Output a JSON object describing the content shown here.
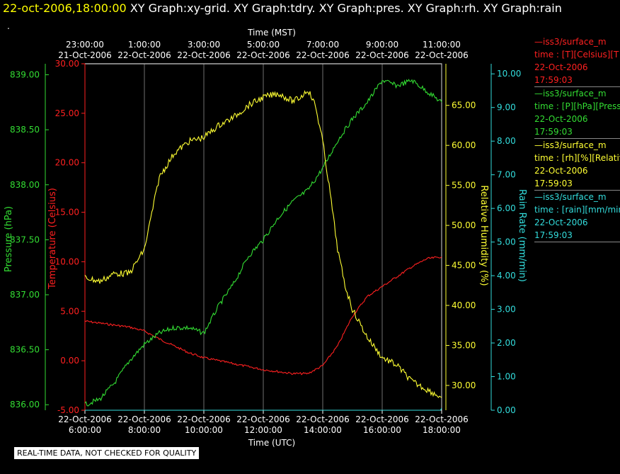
{
  "header": {
    "datetime": "22-oct-2006,18:00:00",
    "graph_titles": "XY Graph:xy-grid.  XY Graph:tdry.  XY Graph:pres.  XY Graph:rh.  XY Graph:rain",
    "dot": "."
  },
  "qc_note": "REAL-TIME DATA, NOT CHECKED FOR QUALITY",
  "legend": [
    {
      "line": "—iss3/surface_m",
      "var": "time : [T][Celsius][T",
      "date": "22-Oct-2006",
      "time": "17:59:03",
      "color": "#ff2020"
    },
    {
      "line": "—iss3/surface_m",
      "var": "time : [P][hPa][Press",
      "date": "22-Oct-2006",
      "time": "17:59:03",
      "color": "#33dd33"
    },
    {
      "line": "—iss3/surface_m",
      "var": "time : [rh][%][Relativ",
      "date": "22-Oct-2006",
      "time": "17:59:03",
      "color": "#ffff33"
    },
    {
      "line": "—iss3/surface_m",
      "var": "time : [rain][mm/min",
      "date": "22-Oct-2006",
      "time": "17:59:03",
      "color": "#33dddd"
    }
  ],
  "chart_data": {
    "type": "line",
    "top_axis": {
      "label": "Time (MST)",
      "ticks": [
        {
          "t": "23:00:00",
          "d": "21-Oct-2006"
        },
        {
          "t": "1:00:00",
          "d": "22-Oct-2006"
        },
        {
          "t": "3:00:00",
          "d": "22-Oct-2006"
        },
        {
          "t": "5:00:00",
          "d": "22-Oct-2006"
        },
        {
          "t": "7:00:00",
          "d": "22-Oct-2006"
        },
        {
          "t": "9:00:00",
          "d": "22-Oct-2006"
        },
        {
          "t": "11:00:00",
          "d": "22-Oct-2006"
        }
      ]
    },
    "bottom_axis": {
      "label": "Time (UTC)",
      "ticks": [
        {
          "d": "22-Oct-2006",
          "t": "6:00:00"
        },
        {
          "d": "22-Oct-2006",
          "t": "8:00:00"
        },
        {
          "d": "22-Oct-2006",
          "t": "10:00:00"
        },
        {
          "d": "22-Oct-2006",
          "t": "12:00:00"
        },
        {
          "d": "22-Oct-2006",
          "t": "14:00:00"
        },
        {
          "d": "22-Oct-2006",
          "t": "16:00:00"
        },
        {
          "d": "22-Oct-2006",
          "t": "18:00:00"
        }
      ],
      "range_hours_utc": [
        6,
        18
      ]
    },
    "axes": {
      "pressure": {
        "label": "Pressure (hPa)",
        "color": "#33dd33",
        "range": [
          835.95,
          839.1
        ],
        "ticks": [
          "836.00",
          "836.50",
          "837.00",
          "837.50",
          "838.00",
          "838.50",
          "839.00"
        ]
      },
      "temperature": {
        "label": "Temperature (Celsius)",
        "color": "#ff2020",
        "range": [
          -5,
          30
        ],
        "ticks": [
          "-5.00",
          "0.00",
          "5.00",
          "10.00",
          "15.00",
          "20.00",
          "25.00",
          "30.00"
        ]
      },
      "humidity": {
        "label": "Relative Humidity (%)",
        "color": "#ffff33",
        "range": [
          26.9,
          70.2
        ],
        "ticks": [
          "30.00",
          "35.00",
          "40.00",
          "45.00",
          "50.00",
          "55.00",
          "60.00",
          "65.00"
        ]
      },
      "rain": {
        "label": "Rain Rate (mm/min)",
        "color": "#33dddd",
        "range": [
          0,
          10.3
        ],
        "ticks": [
          "0.00",
          "1.00",
          "2.00",
          "3.00",
          "4.00",
          "5.00",
          "6.00",
          "7.00",
          "8.00",
          "9.00",
          "10.00"
        ]
      }
    },
    "series": [
      {
        "name": "Temperature (Celsius)",
        "axis": "temperature",
        "color": "#ff2020",
        "x": [
          6.0,
          6.5,
          7.0,
          7.5,
          8.0,
          8.5,
          9.0,
          9.5,
          10.0,
          10.5,
          11.0,
          11.5,
          12.0,
          12.5,
          13.0,
          13.5,
          14.0,
          14.5,
          15.0,
          15.5,
          16.0,
          16.5,
          17.0,
          17.5,
          18.0
        ],
        "values": [
          4.0,
          3.8,
          3.6,
          3.4,
          3.0,
          2.2,
          1.5,
          0.8,
          0.3,
          0.0,
          -0.3,
          -0.6,
          -0.9,
          -1.1,
          -1.3,
          -1.3,
          -0.5,
          1.5,
          4.5,
          6.5,
          7.5,
          8.5,
          9.5,
          10.3,
          10.5
        ]
      },
      {
        "name": "Pressure (hPa)",
        "axis": "pressure",
        "color": "#33dd33",
        "x": [
          6.0,
          6.5,
          7.0,
          7.5,
          8.0,
          8.5,
          9.0,
          9.5,
          10.0,
          10.5,
          11.0,
          11.5,
          12.0,
          12.5,
          13.0,
          13.5,
          14.0,
          14.5,
          15.0,
          15.5,
          16.0,
          16.5,
          17.0,
          17.5,
          18.0
        ],
        "values": [
          836.0,
          836.05,
          836.2,
          836.4,
          836.55,
          836.65,
          836.7,
          836.7,
          836.65,
          836.9,
          837.1,
          837.35,
          837.5,
          837.7,
          837.85,
          837.95,
          838.15,
          838.4,
          838.6,
          838.75,
          838.95,
          838.9,
          838.95,
          838.85,
          838.75
        ]
      },
      {
        "name": "Relative Humidity (%)",
        "axis": "humidity",
        "color": "#ffff33",
        "x": [
          6.0,
          6.5,
          7.0,
          7.5,
          8.0,
          8.5,
          9.0,
          9.5,
          10.0,
          10.5,
          11.0,
          11.5,
          12.0,
          12.5,
          13.0,
          13.25,
          13.5,
          13.75,
          14.0,
          14.25,
          14.5,
          14.75,
          15.0,
          15.5,
          16.0,
          16.5,
          17.0,
          17.5,
          18.0
        ],
        "values": [
          43.5,
          43.0,
          44.0,
          44.0,
          47.0,
          56.0,
          59.0,
          60.5,
          61.0,
          62.5,
          63.5,
          65.0,
          66.0,
          66.5,
          65.5,
          66.0,
          67.0,
          65.0,
          60.5,
          54.0,
          47.0,
          42.5,
          39.5,
          36.0,
          33.5,
          32.5,
          30.5,
          29.5,
          28.5
        ]
      },
      {
        "name": "Rain Rate (mm/min)",
        "axis": "rain",
        "color": "#33dddd",
        "x": [
          6.0,
          18.0
        ],
        "values": [
          0.0,
          0.0
        ]
      }
    ]
  }
}
